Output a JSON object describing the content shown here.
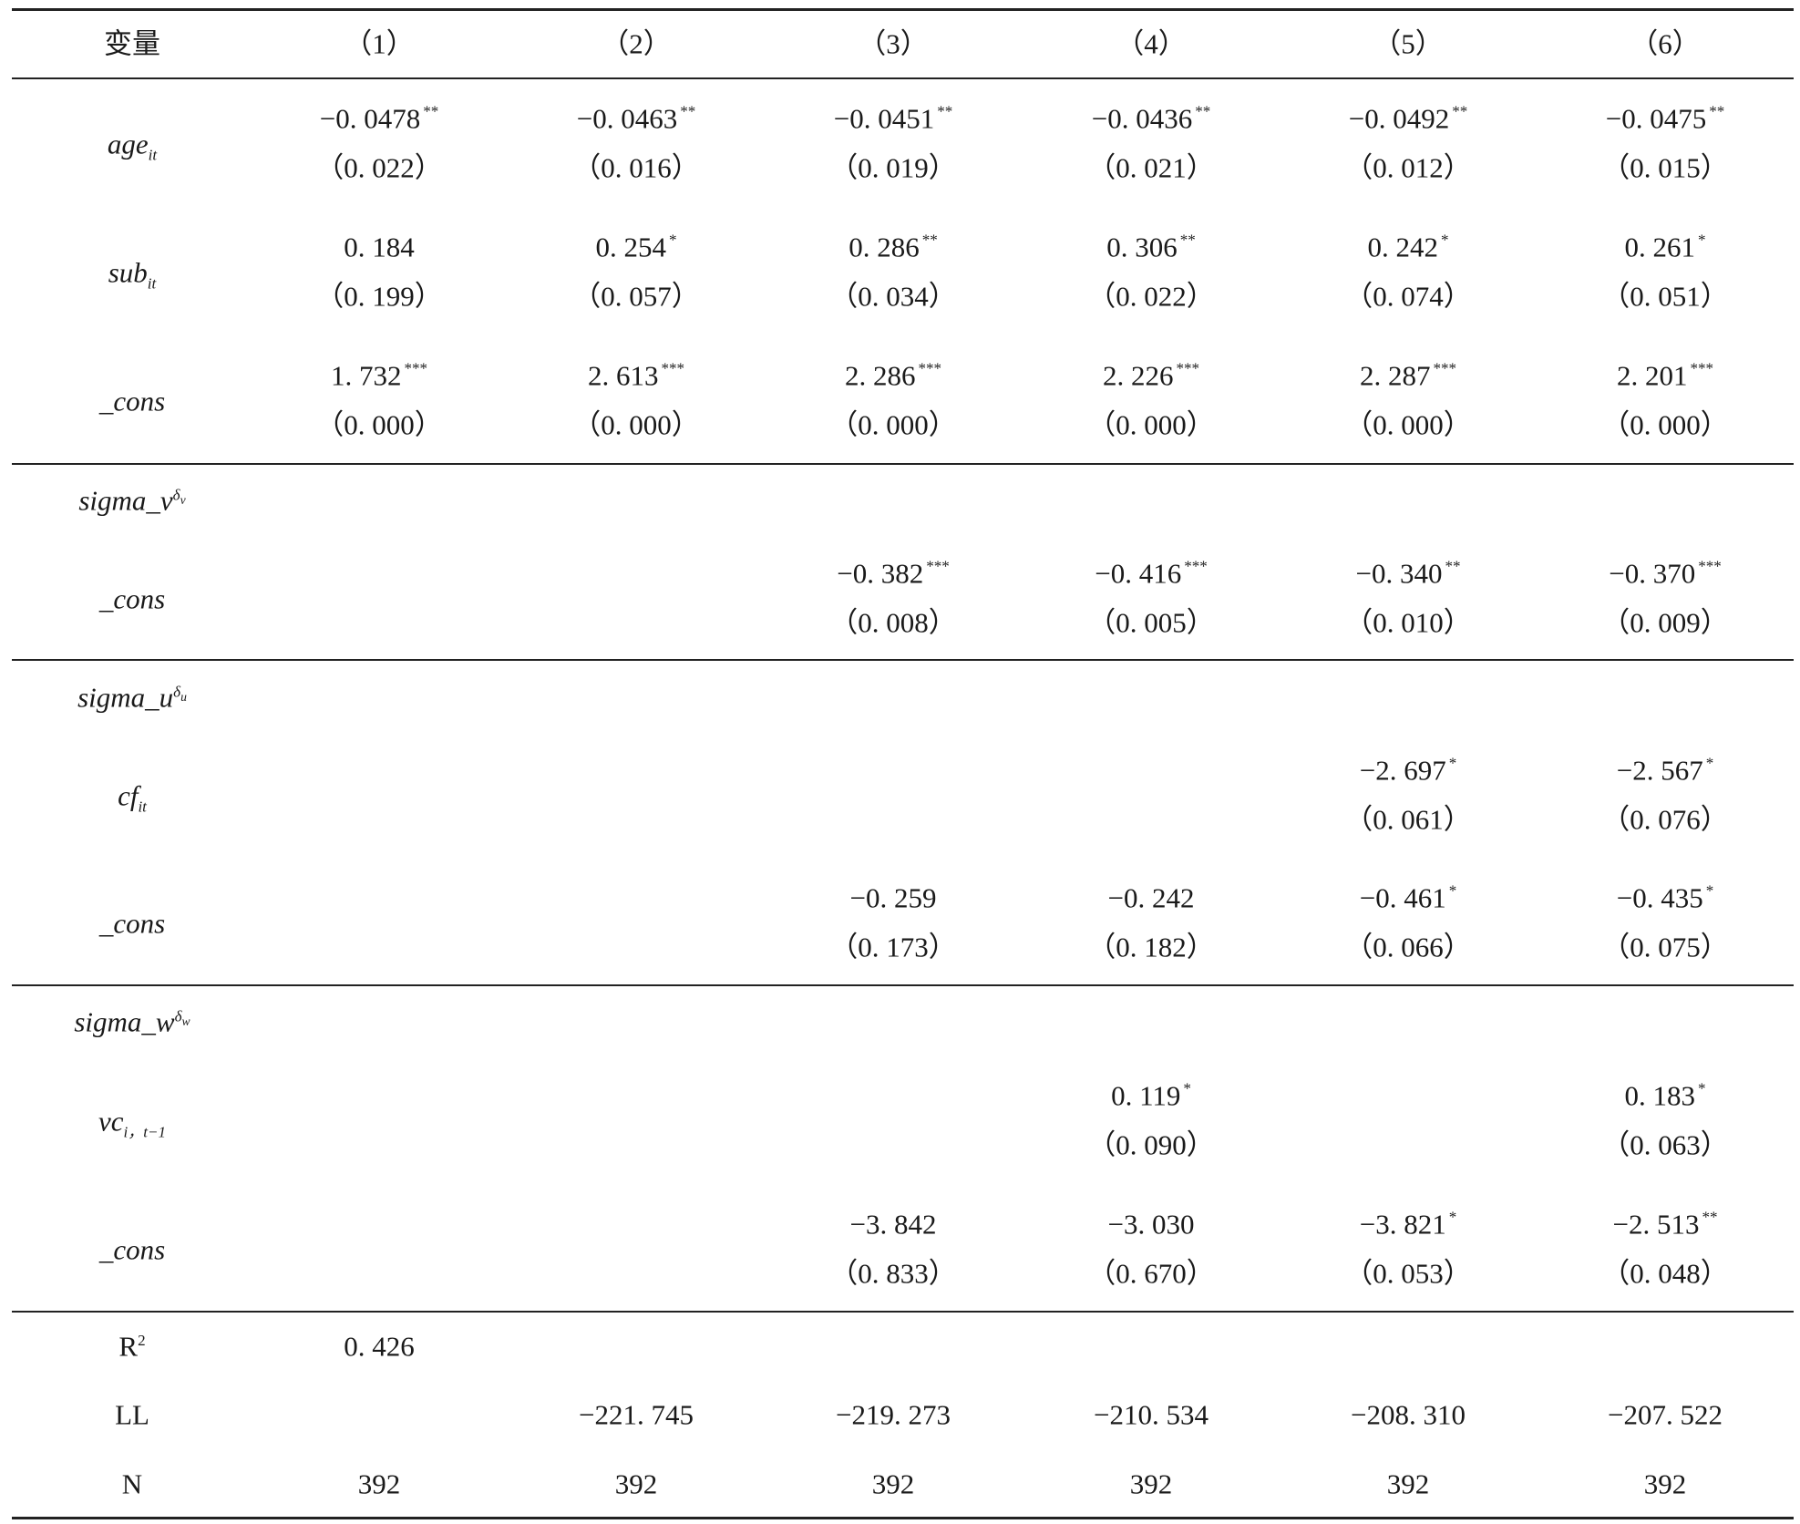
{
  "table": {
    "header": {
      "label": "变量",
      "columns": [
        "（1）",
        "（2）",
        "（3）",
        "（4）",
        "（5）",
        "（6）"
      ]
    },
    "rows": [
      {
        "label": {
          "text": "age",
          "sub": "it"
        },
        "cells": [
          {
            "coef": "−0. 0478",
            "stars": "**",
            "se": "（0. 022）"
          },
          {
            "coef": "−0. 0463",
            "stars": "**",
            "se": "（0. 016）"
          },
          {
            "coef": "−0. 0451",
            "stars": "**",
            "se": "（0. 019）"
          },
          {
            "coef": "−0. 0436",
            "stars": "**",
            "se": "（0. 021）"
          },
          {
            "coef": "−0. 0492",
            "stars": "**",
            "se": "（0. 012）"
          },
          {
            "coef": "−0. 0475",
            "stars": "**",
            "se": "（0. 015）"
          }
        ]
      },
      {
        "label": {
          "text": "sub",
          "sub": "it"
        },
        "cells": [
          {
            "coef": "0. 184",
            "se": "（0. 199）"
          },
          {
            "coef": "0. 254",
            "stars": "*",
            "se": "（0. 057）"
          },
          {
            "coef": "0. 286",
            "stars": "**",
            "se": "（0. 034）"
          },
          {
            "coef": "0. 306",
            "stars": "**",
            "se": "（0. 022）"
          },
          {
            "coef": "0. 242",
            "stars": "*",
            "se": "（0. 074）"
          },
          {
            "coef": "0. 261",
            "stars": "*",
            "se": "（0. 051）"
          }
        ]
      },
      {
        "label": {
          "text": "_cons"
        },
        "cells": [
          {
            "coef": "1. 732",
            "stars": "***",
            "se": "（0. 000）"
          },
          {
            "coef": "2. 613",
            "stars": "***",
            "se": "（0. 000）"
          },
          {
            "coef": "2. 286",
            "stars": "***",
            "se": "（0. 000）"
          },
          {
            "coef": "2. 226",
            "stars": "***",
            "se": "（0. 000）"
          },
          {
            "coef": "2. 287",
            "stars": "***",
            "se": "（0. 000）"
          },
          {
            "coef": "2. 201",
            "stars": "***",
            "se": "（0. 000）"
          }
        ]
      },
      {
        "label": {
          "text": "sigma_v",
          "sup": "δ",
          "supsub": "v"
        },
        "cells": [
          null,
          null,
          null,
          null,
          null,
          null
        ]
      },
      {
        "label": {
          "text": "_cons"
        },
        "cells": [
          null,
          null,
          {
            "coef": "−0. 382",
            "stars": "***",
            "se": "（0. 008）"
          },
          {
            "coef": "−0. 416",
            "stars": "***",
            "se": "（0. 005）"
          },
          {
            "coef": "−0. 340",
            "stars": "**",
            "se": "（0. 010）"
          },
          {
            "coef": "−0. 370",
            "stars": "***",
            "se": "（0. 009）"
          }
        ]
      },
      {
        "label": {
          "text": "sigma_u",
          "sup": "δ",
          "supsub": "u"
        },
        "cells": [
          null,
          null,
          null,
          null,
          null,
          null
        ]
      },
      {
        "label": {
          "text": "cf",
          "sub": "it"
        },
        "cells": [
          null,
          null,
          null,
          null,
          {
            "coef": "−2. 697",
            "stars": "*",
            "se": "（0. 061）"
          },
          {
            "coef": "−2. 567",
            "stars": "*",
            "se": "（0. 076）"
          }
        ]
      },
      {
        "label": {
          "text": "_cons"
        },
        "cells": [
          null,
          null,
          {
            "coef": "−0. 259",
            "se": "（0. 173）"
          },
          {
            "coef": "−0. 242",
            "se": "（0. 182）"
          },
          {
            "coef": "−0. 461",
            "stars": "*",
            "se": "（0. 066）"
          },
          {
            "coef": "−0. 435",
            "stars": "*",
            "se": "（0. 075）"
          }
        ]
      },
      {
        "label": {
          "text": "sigma_w",
          "sup": "δ",
          "supsub": "w"
        },
        "cells": [
          null,
          null,
          null,
          null,
          null,
          null
        ]
      },
      {
        "label": {
          "text": "vc",
          "sub": "i，t−1"
        },
        "cells": [
          null,
          null,
          null,
          {
            "coef": "0. 119",
            "stars": "*",
            "se": "（0. 090）"
          },
          null,
          {
            "coef": "0. 183",
            "stars": "*",
            "se": "（0. 063）"
          }
        ]
      },
      {
        "label": {
          "text": "_cons"
        },
        "cells": [
          null,
          null,
          {
            "coef": "−3. 842",
            "se": "（0. 833）"
          },
          {
            "coef": "−3. 030",
            "se": "（0. 670）"
          },
          {
            "coef": "−3. 821",
            "stars": "*",
            "se": "（0. 053）"
          },
          {
            "coef": "−2. 513",
            "stars": "**",
            "se": "（0. 048）"
          }
        ]
      },
      {
        "label": {
          "text": "R",
          "sup": "2",
          "plain": true
        },
        "cells": [
          {
            "coef": "0. 426"
          },
          null,
          null,
          null,
          null,
          null
        ]
      },
      {
        "label": {
          "text": "LL",
          "plain": true
        },
        "cells": [
          null,
          {
            "coef": "−221. 745"
          },
          {
            "coef": "−219. 273"
          },
          {
            "coef": "−210. 534"
          },
          {
            "coef": "−208. 310"
          },
          {
            "coef": "−207. 522"
          }
        ]
      },
      {
        "label": {
          "text": "N",
          "plain": true
        },
        "cells": [
          {
            "coef": "392"
          },
          {
            "coef": "392"
          },
          {
            "coef": "392"
          },
          {
            "coef": "392"
          },
          {
            "coef": "392"
          },
          {
            "coef": "392"
          }
        ]
      }
    ]
  }
}
